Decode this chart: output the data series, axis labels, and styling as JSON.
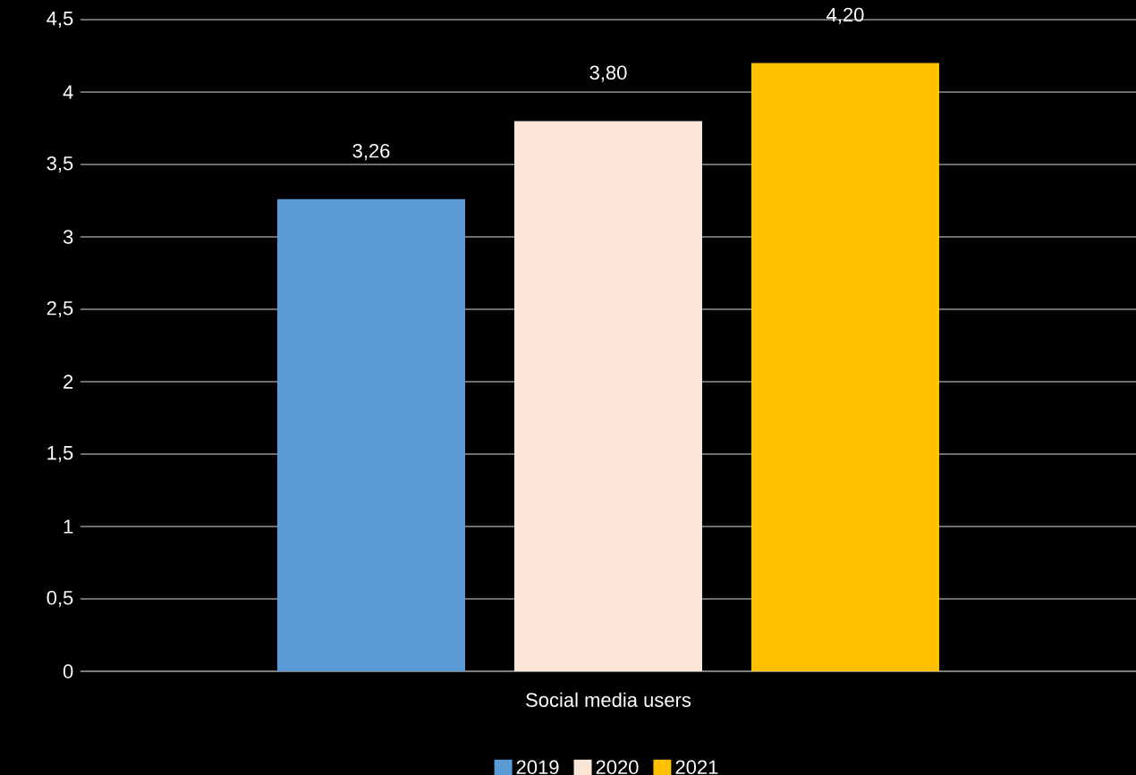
{
  "chart_data": {
    "type": "bar",
    "categories": [
      "Social media users"
    ],
    "series": [
      {
        "name": "2019",
        "color": "#5b9bd5",
        "values": [
          3.26
        ],
        "value_labels": [
          "3,26"
        ]
      },
      {
        "name": "2020",
        "color": "#fbe5d6",
        "values": [
          3.8
        ],
        "value_labels": [
          "3,80"
        ]
      },
      {
        "name": "2021",
        "color": "#ffc000",
        "values": [
          4.2
        ],
        "value_labels": [
          "4,20"
        ]
      }
    ],
    "ylim": [
      0,
      4.5
    ],
    "yticks": [
      0,
      {
        "value": 0.5,
        "label": "0,5"
      },
      1,
      {
        "value": 1.5,
        "label": "1,5"
      },
      2,
      {
        "value": 2.5,
        "label": "2,5"
      },
      3,
      {
        "value": 3.5,
        "label": "3,5"
      },
      4,
      {
        "value": 4.5,
        "label": "4,5"
      }
    ],
    "grid": "y",
    "legend": "bottom"
  }
}
